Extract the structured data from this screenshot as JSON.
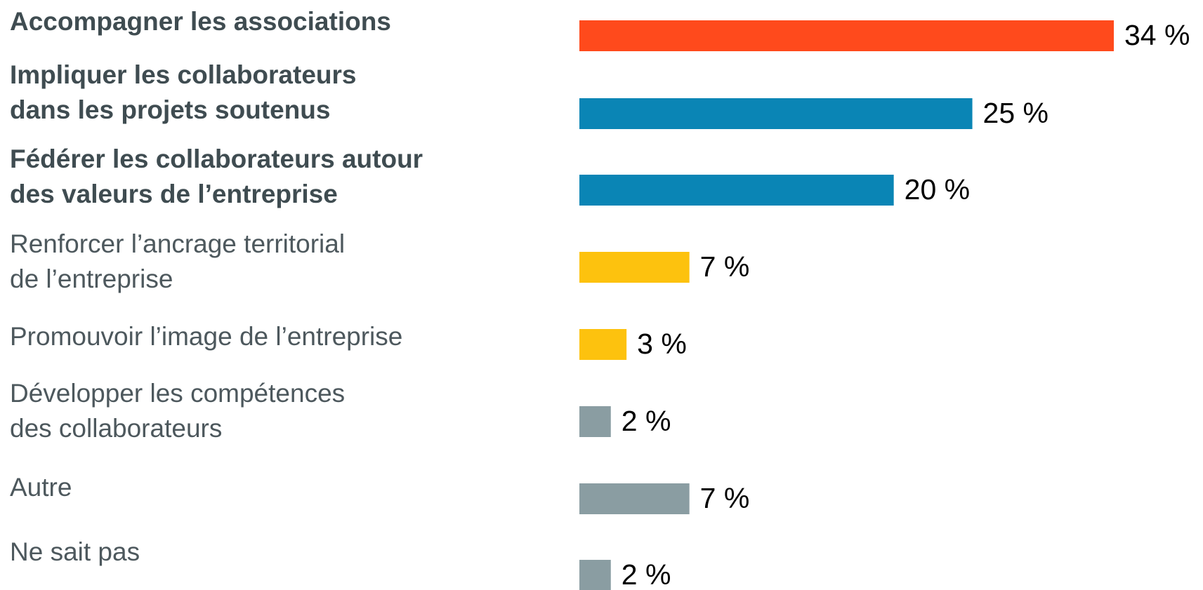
{
  "chart_data": {
    "type": "bar",
    "categories": [
      [
        "Accompagner les associations"
      ],
      [
        "Impliquer les collaborateurs",
        "dans les projets soutenus"
      ],
      [
        "Fédérer les collaborateurs autour",
        "des valeurs de l’entreprise"
      ],
      [
        "Renforcer l’ancrage territorial",
        "de l’entreprise"
      ],
      [
        "Promouvoir l’image de l’entreprise"
      ],
      [
        "Développer les compétences",
        "des collaborateurs"
      ],
      [
        "Autre"
      ],
      [
        "Ne sait pas"
      ]
    ],
    "values": [
      34,
      25,
      20,
      7,
      3,
      2,
      7,
      2
    ],
    "value_labels": [
      "34 %",
      "25 %",
      "20 %",
      "7 %",
      "3 %",
      "2 %",
      "7 %",
      "2 %"
    ],
    "colors": [
      "#ff4a1c",
      "#0a85b5",
      "#0a85b5",
      "#fdc20e",
      "#fdc20e",
      "#8a9da2",
      "#8a9da2",
      "#8a9da2"
    ],
    "bold": [
      true,
      true,
      true,
      false,
      false,
      false,
      false,
      false
    ]
  }
}
